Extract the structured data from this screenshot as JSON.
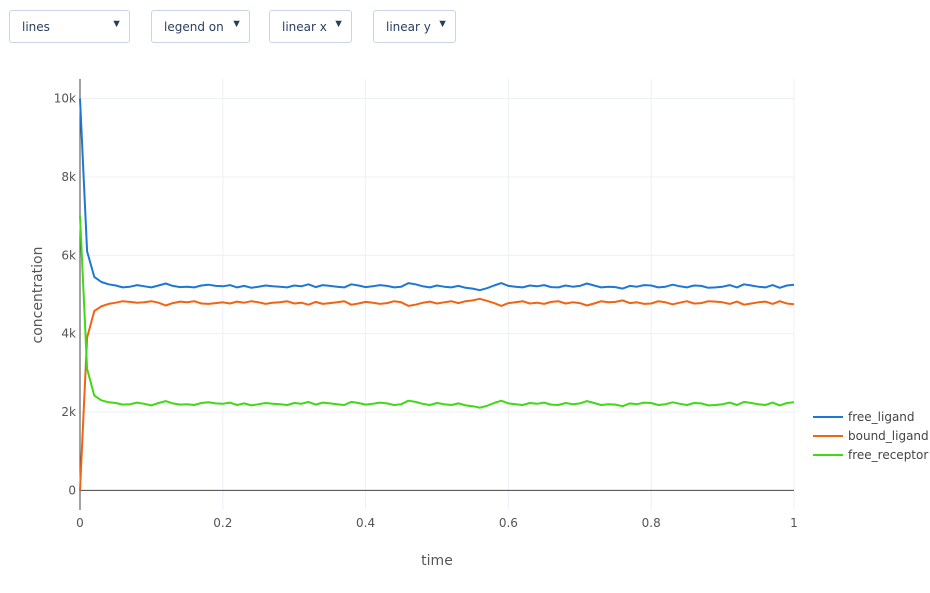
{
  "controls": {
    "mode": "lines",
    "legend": "legend on",
    "xscale": "linear x",
    "yscale": "linear y",
    "arrow_icon": "triangle-down-icon"
  },
  "colors": {
    "free_ligand": "#1f77d4",
    "bound_ligand": "#f06414",
    "free_receptor": "#3fd916",
    "grid": "#ecf0f4",
    "zeroline": "#444444",
    "tick_text": "#555555"
  },
  "chart_data": {
    "type": "line",
    "xlabel": "time",
    "ylabel": "concentration",
    "xlim": [
      0,
      1
    ],
    "ylim": [
      -500,
      10500
    ],
    "xticks": [
      0,
      0.2,
      0.4,
      0.6,
      0.8,
      1
    ],
    "xtick_labels": [
      "0",
      "0.2",
      "0.4",
      "0.6",
      "0.8",
      "1"
    ],
    "yticks": [
      0,
      2000,
      4000,
      6000,
      8000,
      10000
    ],
    "ytick_labels": [
      "0",
      "2k",
      "4k",
      "6k",
      "8k",
      "10k"
    ],
    "grid": true,
    "legend_position": "right",
    "x": [
      0,
      0.01,
      0.02,
      0.03,
      0.04,
      0.05,
      0.06,
      0.07,
      0.08,
      0.09,
      0.1,
      0.11,
      0.12,
      0.13,
      0.14,
      0.15,
      0.16,
      0.17,
      0.18,
      0.19,
      0.2,
      0.21,
      0.22,
      0.23,
      0.24,
      0.25,
      0.26,
      0.27,
      0.28,
      0.29,
      0.3,
      0.31,
      0.32,
      0.33,
      0.34,
      0.35,
      0.36,
      0.37,
      0.38,
      0.39,
      0.4,
      0.41,
      0.42,
      0.43,
      0.44,
      0.45,
      0.46,
      0.47,
      0.48,
      0.49,
      0.5,
      0.51,
      0.52,
      0.53,
      0.54,
      0.55,
      0.56,
      0.57,
      0.58,
      0.59,
      0.6,
      0.61,
      0.62,
      0.63,
      0.64,
      0.65,
      0.66,
      0.67,
      0.68,
      0.69,
      0.7,
      0.71,
      0.72,
      0.73,
      0.74,
      0.75,
      0.76,
      0.77,
      0.78,
      0.79,
      0.8,
      0.81,
      0.82,
      0.83,
      0.84,
      0.85,
      0.86,
      0.87,
      0.88,
      0.89,
      0.9,
      0.91,
      0.92,
      0.93,
      0.94,
      0.95,
      0.96,
      0.97,
      0.98,
      0.99,
      1
    ],
    "series": [
      {
        "name": "free_ligand",
        "values": [
          10000,
          6100,
          5450,
          5320,
          5260,
          5230,
          5180,
          5200,
          5240,
          5210,
          5180,
          5230,
          5280,
          5220,
          5190,
          5200,
          5180,
          5230,
          5250,
          5220,
          5210,
          5240,
          5180,
          5220,
          5170,
          5200,
          5230,
          5210,
          5200,
          5180,
          5230,
          5210,
          5260,
          5190,
          5240,
          5220,
          5200,
          5180,
          5260,
          5230,
          5190,
          5210,
          5240,
          5220,
          5180,
          5200,
          5290,
          5260,
          5210,
          5180,
          5230,
          5200,
          5180,
          5220,
          5170,
          5150,
          5110,
          5160,
          5230,
          5290,
          5220,
          5200,
          5180,
          5230,
          5210,
          5240,
          5190,
          5180,
          5230,
          5200,
          5220,
          5280,
          5230,
          5180,
          5200,
          5190,
          5150,
          5220,
          5200,
          5240,
          5230,
          5180,
          5200,
          5250,
          5210,
          5180,
          5230,
          5220,
          5170,
          5180,
          5200,
          5240,
          5180,
          5260,
          5230,
          5200,
          5180,
          5240,
          5170,
          5230,
          5250
        ]
      },
      {
        "name": "bound_ligand",
        "values": [
          0,
          3900,
          4580,
          4700,
          4760,
          4790,
          4830,
          4810,
          4790,
          4800,
          4830,
          4790,
          4720,
          4780,
          4820,
          4800,
          4830,
          4770,
          4760,
          4780,
          4800,
          4770,
          4820,
          4790,
          4830,
          4800,
          4760,
          4790,
          4800,
          4830,
          4770,
          4790,
          4740,
          4810,
          4760,
          4780,
          4800,
          4830,
          4740,
          4770,
          4810,
          4790,
          4760,
          4780,
          4830,
          4800,
          4710,
          4740,
          4790,
          4820,
          4770,
          4800,
          4830,
          4780,
          4830,
          4850,
          4890,
          4840,
          4780,
          4710,
          4780,
          4800,
          4830,
          4770,
          4790,
          4760,
          4810,
          4830,
          4770,
          4800,
          4780,
          4720,
          4770,
          4830,
          4800,
          4810,
          4850,
          4780,
          4800,
          4760,
          4770,
          4830,
          4800,
          4750,
          4790,
          4830,
          4770,
          4780,
          4830,
          4820,
          4800,
          4760,
          4820,
          4740,
          4770,
          4800,
          4820,
          4760,
          4830,
          4770,
          4750
        ]
      },
      {
        "name": "free_receptor",
        "values": [
          7000,
          3100,
          2420,
          2300,
          2250,
          2230,
          2190,
          2200,
          2240,
          2210,
          2170,
          2230,
          2280,
          2220,
          2190,
          2200,
          2180,
          2230,
          2250,
          2220,
          2210,
          2240,
          2180,
          2220,
          2170,
          2200,
          2230,
          2210,
          2200,
          2180,
          2230,
          2210,
          2260,
          2190,
          2240,
          2220,
          2200,
          2180,
          2260,
          2230,
          2190,
          2210,
          2240,
          2220,
          2180,
          2200,
          2290,
          2260,
          2210,
          2180,
          2230,
          2200,
          2180,
          2220,
          2170,
          2150,
          2110,
          2160,
          2230,
          2290,
          2220,
          2200,
          2180,
          2230,
          2210,
          2240,
          2190,
          2180,
          2230,
          2200,
          2220,
          2280,
          2230,
          2180,
          2200,
          2190,
          2150,
          2220,
          2200,
          2240,
          2230,
          2180,
          2200,
          2250,
          2210,
          2180,
          2230,
          2220,
          2170,
          2180,
          2200,
          2240,
          2180,
          2260,
          2230,
          2200,
          2180,
          2240,
          2170,
          2230,
          2250
        ]
      }
    ]
  }
}
